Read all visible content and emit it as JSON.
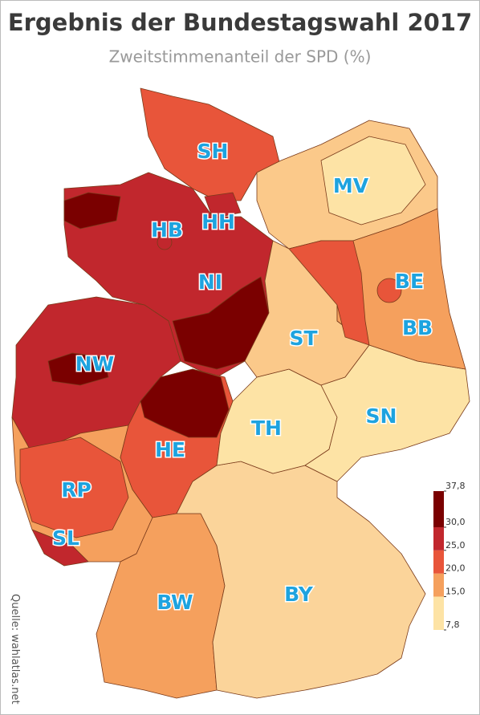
{
  "header": {
    "title": "Ergebnis der Bundestagswahl 2017",
    "subtitle": "Zweitstimmenanteil der SPD (%)"
  },
  "map": {
    "states": [
      {
        "label": "SH"
      },
      {
        "label": "MV"
      },
      {
        "label": "HB"
      },
      {
        "label": "HH"
      },
      {
        "label": "NI"
      },
      {
        "label": "BE"
      },
      {
        "label": "BB"
      },
      {
        "label": "ST"
      },
      {
        "label": "NW"
      },
      {
        "label": "SN"
      },
      {
        "label": "TH"
      },
      {
        "label": "HE"
      },
      {
        "label": "RP"
      },
      {
        "label": "SL"
      },
      {
        "label": "BW"
      },
      {
        "label": "BY"
      }
    ]
  },
  "legend": {
    "colors": [
      "#fde3a5",
      "#f5a05d",
      "#e8553a",
      "#c1272d",
      "#7a0000"
    ],
    "ticks": [
      {
        "value": 7.8,
        "label": "7,8"
      },
      {
        "value": 15.0,
        "label": "15,0"
      },
      {
        "value": 20.0,
        "label": "20,0"
      },
      {
        "value": 25.0,
        "label": "25,0"
      },
      {
        "value": 30.0,
        "label": "30,0"
      },
      {
        "value": 37.8,
        "label": "37,8"
      }
    ]
  },
  "source": "Quelle: wahlatlas.net"
}
